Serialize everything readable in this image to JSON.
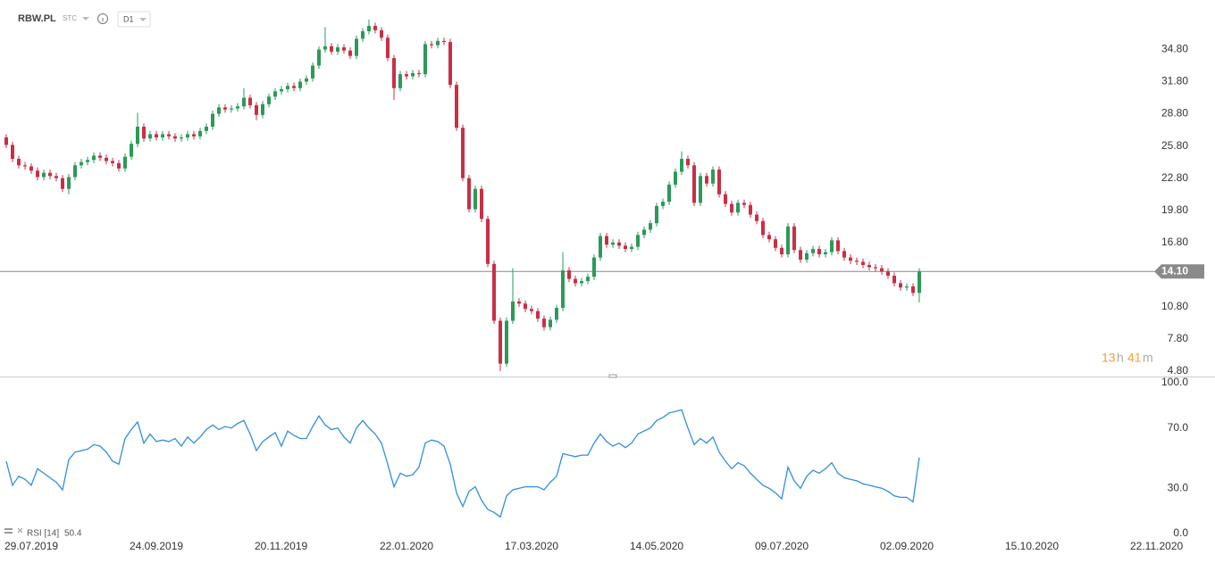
{
  "header": {
    "symbol": "RBW.PL",
    "exchange": "STC",
    "interval": "D1"
  },
  "countdown": {
    "hours": "13",
    "hours_unit": "h",
    "minutes": "41",
    "minutes_unit": "m"
  },
  "chart_data": [
    {
      "type": "candlestick",
      "xlim": [
        -1,
        183
      ],
      "xticks": [
        {
          "value": 0,
          "label": "29.07.2019"
        },
        {
          "value": 20,
          "label": "24.09.2019"
        },
        {
          "value": 40,
          "label": "20.11.2019"
        },
        {
          "value": 60,
          "label": "22.01.2020"
        },
        {
          "value": 80,
          "label": "17.03.2020"
        },
        {
          "value": 100,
          "label": "14.05.2020"
        },
        {
          "value": 120,
          "label": "09.07.2020"
        },
        {
          "value": 140,
          "label": "02.09.2020"
        },
        {
          "value": 160,
          "label": "15.10.2020"
        },
        {
          "value": 180,
          "label": "22.11.2020"
        }
      ],
      "ylim": [
        4.3,
        39.0
      ],
      "yticks": [
        {
          "value": 4.8,
          "label": "4.80"
        },
        {
          "value": 7.8,
          "label": "7.80"
        },
        {
          "value": 10.8,
          "label": "10.80"
        },
        {
          "value": 16.8,
          "label": "16.80"
        },
        {
          "value": 19.8,
          "label": "19.80"
        },
        {
          "value": 22.8,
          "label": "22.80"
        },
        {
          "value": 25.8,
          "label": "25.80"
        },
        {
          "value": 28.8,
          "label": "28.80"
        },
        {
          "value": 31.8,
          "label": "31.80"
        },
        {
          "value": 34.8,
          "label": "34.80"
        }
      ],
      "up_color": "#2b9a58",
      "down_color": "#c92f45",
      "last_price": {
        "value": 14.1,
        "label": "14.10"
      },
      "open": [
        26.6,
        25.9,
        24.6,
        24.0,
        23.9,
        23.5,
        22.9,
        23.3,
        23.0,
        22.8,
        21.8,
        22.9,
        24.0,
        24.3,
        24.5,
        24.9,
        24.7,
        24.4,
        24.2,
        23.7,
        24.8,
        26.0,
        27.6,
        26.5,
        26.9,
        26.6,
        26.9,
        26.7,
        26.5,
        26.6,
        26.9,
        26.7,
        27.2,
        27.6,
        28.8,
        29.4,
        29.2,
        29.3,
        29.5,
        30.3,
        29.6,
        28.7,
        29.7,
        30.4,
        30.9,
        31.1,
        31.4,
        31.2,
        31.8,
        32.1,
        33.3,
        34.8,
        35.1,
        34.6,
        35.0,
        34.7,
        34.2,
        35.8,
        36.5,
        37.0,
        36.6,
        35.9,
        34.0,
        31.2,
        32.5,
        32.3,
        32.6,
        32.5,
        35.3,
        35.2,
        35.6,
        35.5,
        31.5,
        27.5,
        22.8,
        19.9,
        21.8,
        19.0,
        14.8,
        9.5,
        5.5,
        9.5,
        11.3,
        11.1,
        10.6,
        10.4,
        9.7,
        8.9,
        9.6,
        10.7,
        14.2,
        13.4,
        13.0,
        13.2,
        13.6,
        15.4,
        17.4,
        16.6,
        16.8,
        16.5,
        16.2,
        16.4,
        17.5,
        18.0,
        18.6,
        20.2,
        20.6,
        22.2,
        23.4,
        24.6,
        24.0,
        20.5,
        23.0,
        22.3,
        23.6,
        21.3,
        20.4,
        19.6,
        20.5,
        20.3,
        19.4,
        18.8,
        17.5,
        17.1,
        16.3,
        15.7,
        18.3,
        16.1,
        15.2,
        15.8,
        16.2,
        15.7,
        15.9,
        17.0,
        16.0,
        15.4,
        15.1,
        15.0,
        14.7,
        14.5,
        14.4,
        14.1,
        13.7,
        13.0,
        12.6,
        12.7,
        12.1
      ],
      "high": [
        26.9,
        26.2,
        24.9,
        24.3,
        24.2,
        23.8,
        23.6,
        23.6,
        23.3,
        23.1,
        23.2,
        24.3,
        24.6,
        24.8,
        25.2,
        25.2,
        25.0,
        24.7,
        24.5,
        25.1,
        26.3,
        28.9,
        27.9,
        27.2,
        27.2,
        27.2,
        27.2,
        27.0,
        26.9,
        27.2,
        27.2,
        27.5,
        27.9,
        29.1,
        29.7,
        29.7,
        29.6,
        29.8,
        31.2,
        30.6,
        29.9,
        30.0,
        30.7,
        31.2,
        31.4,
        31.7,
        31.7,
        32.1,
        32.4,
        33.6,
        35.1,
        36.9,
        35.4,
        35.3,
        35.3,
        35.0,
        36.1,
        36.8,
        37.6,
        37.3,
        36.9,
        36.2,
        34.3,
        32.8,
        32.8,
        32.9,
        32.9,
        35.6,
        35.6,
        35.9,
        35.9,
        35.8,
        31.8,
        27.8,
        23.1,
        22.1,
        22.1,
        19.3,
        15.1,
        9.8,
        9.8,
        14.4,
        11.6,
        11.4,
        10.9,
        10.7,
        10.0,
        9.9,
        11.0,
        15.9,
        14.5,
        13.7,
        13.5,
        13.9,
        15.7,
        17.7,
        17.7,
        17.1,
        17.1,
        16.8,
        16.7,
        17.8,
        18.3,
        18.9,
        20.5,
        20.9,
        22.5,
        23.7,
        25.3,
        24.9,
        24.3,
        23.3,
        23.3,
        23.9,
        23.9,
        21.6,
        20.7,
        20.8,
        20.8,
        20.6,
        19.7,
        19.1,
        17.8,
        17.4,
        16.6,
        18.6,
        18.6,
        16.4,
        16.1,
        16.5,
        16.5,
        16.2,
        17.3,
        17.3,
        16.3,
        15.7,
        15.4,
        15.3,
        15.0,
        14.8,
        14.7,
        14.4,
        14.0,
        13.3,
        13.0,
        13.0,
        14.4
      ],
      "low": [
        25.6,
        24.3,
        23.7,
        23.6,
        23.2,
        22.6,
        22.6,
        22.7,
        22.5,
        21.5,
        21.3,
        22.6,
        23.7,
        24.0,
        24.2,
        24.4,
        24.1,
        23.9,
        23.4,
        23.4,
        24.5,
        25.7,
        26.2,
        26.2,
        26.3,
        26.3,
        26.4,
        26.2,
        26.2,
        26.3,
        26.4,
        26.4,
        26.9,
        27.3,
        28.5,
        28.9,
        28.9,
        29.0,
        29.2,
        29.3,
        28.2,
        28.4,
        29.4,
        30.1,
        30.6,
        30.8,
        30.9,
        30.9,
        31.5,
        31.8,
        33.0,
        34.5,
        34.3,
        34.3,
        34.4,
        33.9,
        33.9,
        35.5,
        36.2,
        36.3,
        35.6,
        33.7,
        30.1,
        30.9,
        32.0,
        32.0,
        32.2,
        32.2,
        34.9,
        34.9,
        35.2,
        31.2,
        27.2,
        22.5,
        19.6,
        19.6,
        18.7,
        14.5,
        9.2,
        4.8,
        5.2,
        9.2,
        10.8,
        10.3,
        10.1,
        9.4,
        8.6,
        8.6,
        9.3,
        10.4,
        13.1,
        12.7,
        12.7,
        12.9,
        13.3,
        15.1,
        16.3,
        16.3,
        16.2,
        15.9,
        15.9,
        16.1,
        17.2,
        17.7,
        18.3,
        19.9,
        20.3,
        21.9,
        23.1,
        23.7,
        20.2,
        20.2,
        22.0,
        22.0,
        21.0,
        20.1,
        19.3,
        19.3,
        20.0,
        19.1,
        18.5,
        17.2,
        16.8,
        16.0,
        15.4,
        15.4,
        15.8,
        14.9,
        14.9,
        15.5,
        15.4,
        15.4,
        15.6,
        15.7,
        15.1,
        14.8,
        14.7,
        14.4,
        14.2,
        14.1,
        13.8,
        13.4,
        12.7,
        12.3,
        12.3,
        11.8,
        11.2
      ],
      "close": [
        25.9,
        24.6,
        24.0,
        23.9,
        23.5,
        22.9,
        23.3,
        23.0,
        22.8,
        21.8,
        22.9,
        24.0,
        24.3,
        24.5,
        24.9,
        24.7,
        24.4,
        24.2,
        23.7,
        24.8,
        26.0,
        27.6,
        26.5,
        26.9,
        26.6,
        26.9,
        26.7,
        26.5,
        26.6,
        26.9,
        26.7,
        27.2,
        27.6,
        28.8,
        29.4,
        29.2,
        29.3,
        29.5,
        30.3,
        29.6,
        28.7,
        29.7,
        30.4,
        30.9,
        31.1,
        31.4,
        31.2,
        31.8,
        32.1,
        33.3,
        34.8,
        35.1,
        34.6,
        35.0,
        34.7,
        34.2,
        35.8,
        36.5,
        37.0,
        36.6,
        35.9,
        34.0,
        31.2,
        32.5,
        32.3,
        32.6,
        32.5,
        35.3,
        35.2,
        35.6,
        35.5,
        31.5,
        27.5,
        22.8,
        19.9,
        21.8,
        19.0,
        14.8,
        9.5,
        5.5,
        9.5,
        11.3,
        11.1,
        10.6,
        10.4,
        9.7,
        8.9,
        9.6,
        10.7,
        14.2,
        13.4,
        13.0,
        13.2,
        13.6,
        15.4,
        17.4,
        16.6,
        16.8,
        16.5,
        16.2,
        16.4,
        17.5,
        18.0,
        18.6,
        20.2,
        20.6,
        22.2,
        23.4,
        24.6,
        24.0,
        20.5,
        23.0,
        22.3,
        23.6,
        21.3,
        20.4,
        19.6,
        20.5,
        20.3,
        19.4,
        18.8,
        17.5,
        17.1,
        16.3,
        15.7,
        18.3,
        16.1,
        15.2,
        15.8,
        16.2,
        15.7,
        15.9,
        17.0,
        16.0,
        15.4,
        15.1,
        15.0,
        14.7,
        14.5,
        14.4,
        14.1,
        13.7,
        13.0,
        12.6,
        12.7,
        12.1,
        14.1
      ]
    },
    {
      "type": "line",
      "xlim": [
        -1,
        183
      ],
      "ylim": [
        0,
        100
      ],
      "yticks": [
        {
          "value": 0,
          "label": "0.0"
        },
        {
          "value": 30,
          "label": "30.0"
        },
        {
          "value": 70,
          "label": "70.0"
        },
        {
          "value": 100,
          "label": "100.0"
        }
      ],
      "series": [
        {
          "name": "RSI [14]",
          "color": "#2f8fe0",
          "values": [
            48,
            32,
            38,
            36,
            32,
            43,
            40,
            37,
            34,
            29,
            49,
            54,
            55,
            56,
            59,
            58,
            54,
            48,
            46,
            63,
            69,
            74,
            60,
            66,
            61,
            62,
            61,
            63,
            58,
            64,
            60,
            64,
            69,
            72,
            69,
            71,
            70,
            73,
            75,
            66,
            55,
            61,
            64,
            67,
            58,
            68,
            65,
            63,
            63,
            71,
            78,
            72,
            69,
            70,
            64,
            60,
            70,
            75,
            70,
            66,
            60,
            46,
            31,
            40,
            38,
            39,
            44,
            60,
            62,
            61,
            58,
            46,
            27,
            18,
            28,
            31,
            22,
            16,
            14,
            11,
            25,
            29,
            30,
            31,
            31,
            31,
            29,
            34,
            38,
            53,
            52,
            51,
            52,
            52,
            60,
            66,
            61,
            58,
            60,
            57,
            60,
            66,
            68,
            70,
            75,
            77,
            80,
            81,
            82,
            70,
            59,
            63,
            60,
            64,
            54,
            48,
            43,
            47,
            45,
            40,
            36,
            32,
            30,
            27,
            23,
            44,
            35,
            30,
            38,
            42,
            40,
            43,
            47,
            40,
            37,
            36,
            35,
            33,
            32,
            31,
            30,
            28,
            25,
            24,
            24,
            21,
            50.4
          ]
        }
      ]
    }
  ]
}
